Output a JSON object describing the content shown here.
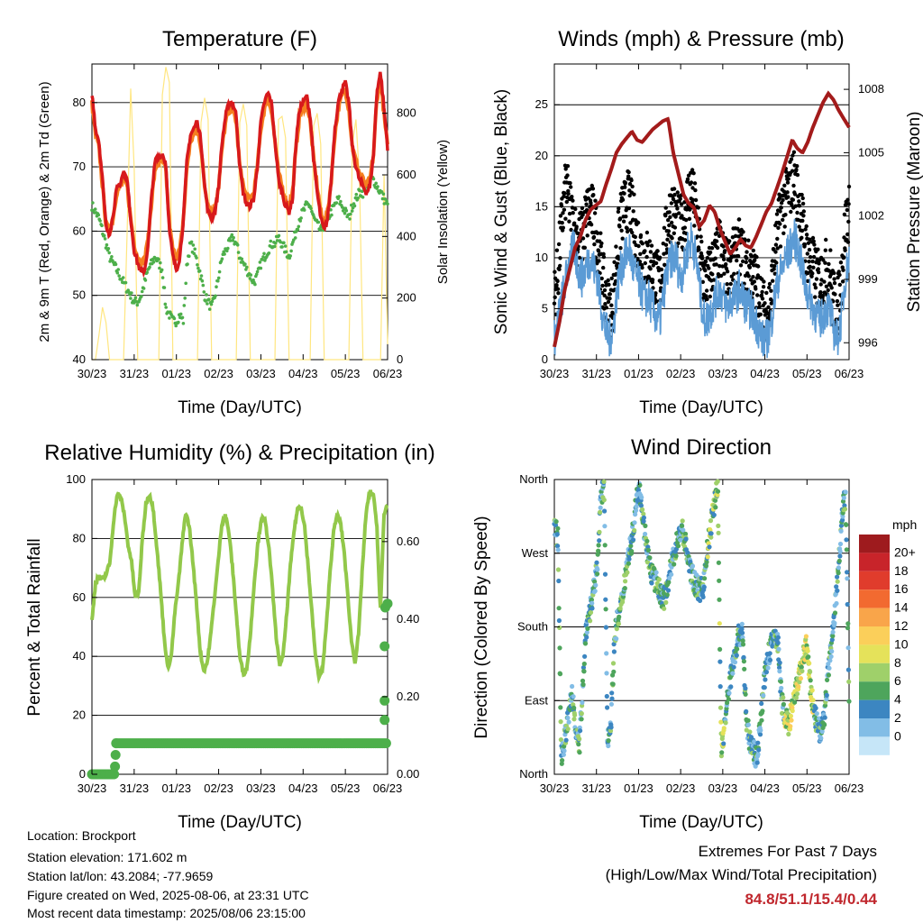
{
  "info": {
    "location": "Location: Brockport",
    "elevation": "Station elevation: 171.602 m",
    "latlon": "Station lat/lon: 43.2084; -77.9659",
    "created": "Figure created on Wed, 2025-08-06, at 23:31 UTC",
    "recent": "Most recent data timestamp: 2025/08/06 23:15:00"
  },
  "extremes": {
    "title": "Extremes For Past 7 Days",
    "subtitle": "(High/Low/Max Wind/Total Precipitation)",
    "values": "84.8/51.1/15.4/0.44"
  },
  "time_ticks": [
    "30/23",
    "31/23",
    "01/23",
    "02/23",
    "03/23",
    "04/23",
    "05/23",
    "06/23"
  ],
  "colors": {
    "temp2m": "#d7191c",
    "temp9m": "#f57f20",
    "dewpoint": "#4daf4a",
    "solar": "#ffe680",
    "wind": "#5b9bd5",
    "gust": "#000000",
    "pressure": "#a31b1b",
    "rh": "#92c84a",
    "precip": "#4daf4a"
  },
  "chart_data": [
    {
      "type": "line",
      "title": "Temperature (F)",
      "xlabel": "Time (Day/UTC)",
      "ylabel": "2m & 9m T (Red, Orange) & 2m Td (Green)",
      "y2label": "Solar Insolation (Yellow)",
      "ylim": [
        40,
        86
      ],
      "y2lim": [
        0,
        960
      ],
      "yticks": [
        "40",
        "50",
        "60",
        "70",
        "80"
      ],
      "y2ticks": [
        "0",
        "200",
        "400",
        "600",
        "800"
      ],
      "series": [
        {
          "values": [
            81.5,
            76,
            74,
            68,
            61,
            59.5,
            62,
            67,
            67.5,
            69,
            68,
            62,
            57,
            55,
            53.5,
            54,
            58,
            66,
            71,
            71.5,
            72,
            70.5,
            60,
            56,
            54,
            56,
            62,
            71,
            75,
            76,
            77,
            74,
            67,
            63,
            62,
            63,
            67,
            74,
            78,
            80,
            80,
            78,
            70,
            66,
            64,
            64,
            65,
            70,
            77,
            80,
            81.5,
            80,
            74,
            68,
            66,
            64,
            63,
            65,
            74,
            79,
            80,
            81,
            78,
            71,
            66,
            62,
            60,
            62,
            68,
            76,
            80,
            82,
            83,
            80,
            73,
            70,
            68,
            67,
            66,
            67,
            72,
            82,
            84.8,
            79,
            73
          ]
        },
        {
          "values": [
            80,
            75,
            73,
            67,
            61,
            60,
            62,
            66,
            67,
            68,
            67,
            62,
            58,
            56,
            55,
            55.5,
            59,
            65,
            70,
            70.5,
            71,
            69.5,
            61,
            57,
            56,
            57,
            62,
            70,
            74,
            75,
            76,
            73,
            67,
            64,
            63,
            64,
            67,
            73,
            77,
            79,
            79,
            77,
            70,
            67,
            65,
            65,
            66,
            70,
            76,
            79,
            80.5,
            79,
            74,
            69,
            67,
            65,
            64,
            66,
            73,
            78,
            79,
            80,
            77,
            71,
            67,
            63,
            61,
            63,
            68,
            75,
            79,
            81,
            82,
            79,
            73,
            71,
            69,
            68,
            67,
            68,
            72,
            81,
            83.5,
            78,
            73
          ]
        },
        {
          "values": [
            64,
            63,
            62,
            60,
            58,
            56,
            55,
            54,
            53,
            52,
            51,
            50,
            49,
            49,
            50,
            52,
            54,
            55,
            56,
            55,
            54,
            48,
            47,
            46,
            46,
            47,
            46,
            55,
            58,
            57,
            55,
            53,
            50,
            49,
            48,
            50,
            53,
            56,
            57,
            58,
            59,
            58,
            56,
            55,
            54,
            53,
            52,
            53,
            55,
            56,
            57,
            58,
            58,
            59,
            58,
            57,
            56,
            58,
            60,
            62,
            63,
            64,
            64,
            62,
            61,
            60,
            61,
            62,
            63,
            64,
            65,
            64,
            63,
            62,
            64,
            65,
            66,
            66,
            67,
            68,
            68,
            67,
            66,
            65,
            64
          ]
        }
      ],
      "solar": [
        0,
        0,
        80,
        170,
        120,
        0,
        0,
        0,
        0,
        0,
        410,
        880,
        620,
        0,
        0,
        0,
        0,
        0,
        0,
        0,
        860,
        950,
        900,
        0,
        0,
        0,
        0,
        0,
        0,
        0,
        0,
        770,
        850,
        780,
        0,
        0,
        0,
        0,
        0,
        0,
        0,
        0,
        770,
        830,
        760,
        0,
        0,
        0,
        0,
        0,
        0,
        0,
        0,
        780,
        790,
        720,
        0,
        0,
        0,
        0,
        0,
        0,
        0,
        760,
        800,
        700,
        0,
        0,
        0,
        0,
        0,
        0,
        0,
        0,
        700,
        780,
        590,
        0,
        0,
        0,
        0,
        0,
        0,
        600,
        50
      ]
    },
    {
      "type": "scatter",
      "title": "Winds (mph) & Pressure (mb)",
      "xlabel": "Time (Day/UTC)",
      "ylabel": "Sonic Wind & Gust (Blue, Black)",
      "y2label": "Station Pressure (Maroon)",
      "ylim": [
        0,
        29
      ],
      "y2lim": [
        995.2,
        1009.2
      ],
      "yticks": [
        "0",
        "5",
        "10",
        "15",
        "20",
        "25"
      ],
      "y2ticks": [
        "996",
        "999",
        "1002",
        "1005",
        "1008"
      ],
      "wind": [
        2,
        4,
        6,
        8,
        10,
        11,
        9,
        8,
        9,
        10,
        9,
        8,
        5,
        3,
        2,
        3,
        7,
        9,
        10,
        11,
        9,
        8,
        7,
        6,
        6,
        5,
        4,
        4,
        7,
        9,
        10,
        10,
        8,
        9,
        11,
        12,
        10,
        7,
        4,
        4,
        5,
        6,
        7,
        6,
        5,
        6,
        6,
        7,
        6,
        5,
        5,
        4,
        3,
        2,
        2,
        3,
        6,
        8,
        9,
        10,
        11,
        12,
        11,
        9,
        7,
        6,
        5,
        4,
        4,
        5,
        5,
        3,
        2,
        4,
        8,
        10
      ],
      "gust": [
        5,
        8,
        13,
        16,
        14,
        12,
        11,
        11,
        13,
        14,
        13,
        11,
        8,
        5,
        4,
        5,
        10,
        13,
        14,
        15,
        13,
        11,
        10,
        9,
        9,
        8,
        7,
        7,
        10,
        13,
        14,
        13,
        12,
        13,
        15,
        16,
        13,
        10,
        7,
        7,
        8,
        9,
        10,
        9,
        8,
        9,
        9,
        10,
        9,
        8,
        8,
        7,
        6,
        4,
        4,
        5,
        9,
        12,
        14,
        15,
        16,
        17,
        15,
        13,
        10,
        9,
        8,
        7,
        7,
        8,
        8,
        5,
        4,
        7,
        12,
        14
      ],
      "pressure": [
        995.8,
        997,
        998.5,
        999.5,
        1000.5,
        1001,
        1001.8,
        1002.3,
        1002.5,
        1002.7,
        1003.5,
        1004.2,
        1005,
        1005.4,
        1005.7,
        1006,
        1005.6,
        1005.5,
        1005.8,
        1006.1,
        1006.3,
        1006.5,
        1006.6,
        1005,
        1004,
        1003,
        1002.6,
        1002.4,
        1001.5,
        1001.8,
        1002.5,
        1002.2,
        1001.4,
        1000.8,
        1000.2,
        1000.5,
        1000.9,
        1000.6,
        1000.5,
        1001,
        1001.6,
        1002.2,
        1002.6,
        1003.3,
        1004,
        1004.8,
        1005.6,
        1005.2,
        1005,
        1005.5,
        1006.2,
        1006.8,
        1007.4,
        1007.8,
        1007.5,
        1007,
        1006.6,
        1006.2
      ]
    },
    {
      "type": "line",
      "title": "Relative Humidity (%) & Precipitation (in)",
      "xlabel": "Time (Day/UTC)",
      "ylabel": "Percent & Total Rainfall",
      "ylim": [
        0,
        100
      ],
      "y2lim": [
        0,
        0.76
      ],
      "yticks": [
        "0",
        "20",
        "40",
        "60",
        "80",
        "100"
      ],
      "y2ticks": [
        "0.00",
        "0.20",
        "0.40",
        "0.60"
      ],
      "series": [
        {
          "values": [
            52,
            65,
            67,
            66,
            68,
            72,
            86,
            95,
            94,
            88,
            78,
            72,
            60,
            62,
            80,
            92,
            95,
            90,
            77,
            63,
            47,
            36,
            40,
            55,
            65,
            78,
            89,
            84,
            72,
            58,
            42,
            35,
            38,
            48,
            60,
            72,
            85,
            88,
            82,
            70,
            55,
            40,
            34,
            36,
            48,
            65,
            78,
            87,
            86,
            78,
            64,
            48,
            37,
            40,
            54,
            70,
            82,
            90,
            91,
            84,
            70,
            55,
            40,
            33,
            36,
            50,
            68,
            82,
            88,
            85,
            75,
            60,
            45,
            38,
            48,
            70,
            88,
            96,
            95,
            85,
            55,
            88,
            92
          ]
        },
        {
          "values": [
            0,
            0,
            0,
            0,
            0,
            0,
            0,
            0.01,
            0.08,
            0.08,
            0.08,
            0.08,
            0.08,
            0.08,
            0.08,
            0.08,
            0.08,
            0.08,
            0.08,
            0.08,
            0.08,
            0.08,
            0.08,
            0.08,
            0.08,
            0.08,
            0.08,
            0.08,
            0.08,
            0.08,
            0.08,
            0.08,
            0.08,
            0.08,
            0.14,
            0.19,
            0.33,
            0.43,
            0.44
          ]
        }
      ]
    },
    {
      "type": "scatter",
      "title": "Wind Direction",
      "xlabel": "Time (Day/UTC)",
      "ylabel": "Direction (Colored By Speed)",
      "ylim": [
        0,
        360
      ],
      "yticks": [
        "North",
        "East",
        "South",
        "West",
        "North"
      ],
      "colorbar_title": "mph",
      "colorbar_labels": [
        "20+",
        "18",
        "16",
        "14",
        "12",
        "10",
        "8",
        "6",
        "4",
        "2",
        "0"
      ],
      "colorbar_colors": [
        "#9e1b1e",
        "#c8242a",
        "#e03c2c",
        "#f26a30",
        "#f9a54a",
        "#fbcf5a",
        "#e5e25a",
        "#9fd06a",
        "#4ea55c",
        "#3c86c1",
        "#82bde6",
        "#c6e6f8"
      ],
      "direction": [
        300,
        290,
        20,
        45,
        70,
        100,
        60,
        30,
        110,
        180,
        200,
        220,
        250,
        330,
        355,
        40,
        70,
        170,
        190,
        210,
        245,
        270,
        290,
        330,
        355,
        310,
        280,
        250,
        240,
        230,
        220,
        215,
        235,
        255,
        275,
        290,
        300,
        280,
        255,
        240,
        230,
        225,
        230,
        270,
        300,
        330,
        355,
        30,
        60,
        100,
        130,
        150,
        170,
        175,
        70,
        40,
        30,
        20,
        60,
        110,
        140,
        155,
        170,
        160,
        90,
        70,
        60,
        80,
        100,
        120,
        140,
        160,
        110,
        80,
        60,
        50,
        70,
        120,
        155,
        200,
        250,
        320,
        340,
        100
      ]
    }
  ]
}
